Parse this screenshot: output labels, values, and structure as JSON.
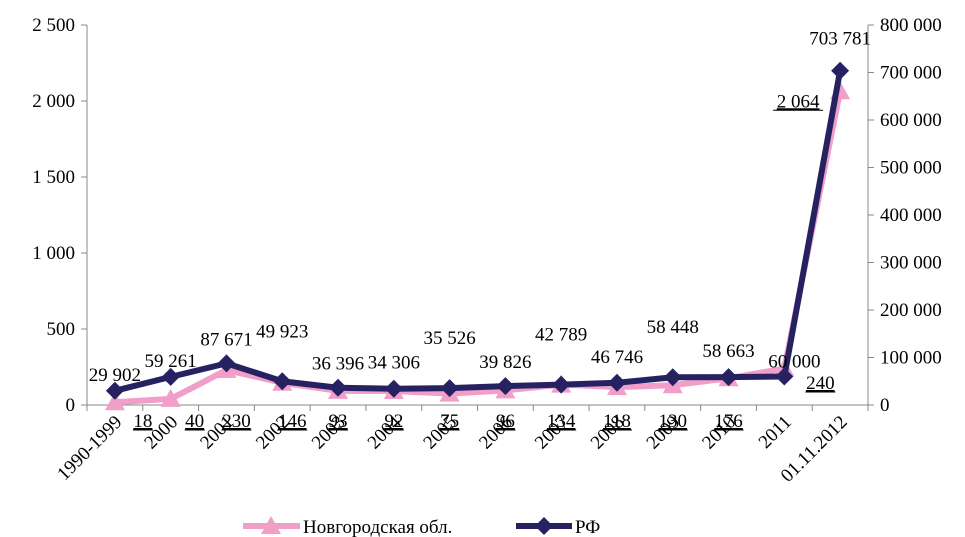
{
  "chart_data": {
    "type": "line",
    "title": "",
    "xlabel": "",
    "ylabel_left": "",
    "ylabel_right": "",
    "categories": [
      "1990-1999",
      "2000",
      "2001",
      "2002",
      "2003",
      "2004",
      "2005",
      "2006",
      "2007",
      "2008",
      "2009",
      "2010",
      "2011",
      "01.11.2012"
    ],
    "left_axis": {
      "range": [
        0,
        2500
      ],
      "ticks": [
        0,
        500,
        1000,
        1500,
        2000,
        2500
      ],
      "tick_labels": [
        "0",
        "500",
        "1 000",
        "1 500",
        "2 000",
        "2 500"
      ]
    },
    "right_axis": {
      "range": [
        0,
        800000
      ],
      "ticks": [
        0,
        100000,
        200000,
        300000,
        400000,
        500000,
        600000,
        700000,
        800000
      ],
      "tick_labels": [
        "0",
        "100 000",
        "200 000",
        "300 000",
        "400 000",
        "500 000",
        "600 000",
        "700 000",
        "800 000"
      ]
    },
    "grid": false,
    "legend_position": "bottom",
    "series": [
      {
        "name": "Новгородская обл.",
        "axis": "left",
        "color": "#f19ec9",
        "marker": "triangle",
        "values": [
          18,
          40,
          230,
          146,
          93,
          92,
          75,
          96,
          134,
          118,
          130,
          176,
          240,
          2064
        ],
        "labels": [
          "18",
          "40",
          "230",
          "146",
          "93",
          "92",
          "75",
          "96",
          "134",
          "118",
          "130",
          "176",
          "240",
          "2 064"
        ]
      },
      {
        "name": "РФ",
        "axis": "right",
        "color": "#262262",
        "marker": "diamond",
        "values": [
          29902,
          59261,
          87671,
          49923,
          36396,
          34306,
          35526,
          39826,
          42789,
          46746,
          58448,
          58663,
          60000,
          703781
        ],
        "labels": [
          "29 902",
          "59 261",
          "87 671",
          "49 923",
          "36 396",
          "34 306",
          "35 526",
          "39 826",
          "42 789",
          "46 746",
          "58 448",
          "58 663",
          "60 000",
          "703 781"
        ]
      }
    ]
  }
}
